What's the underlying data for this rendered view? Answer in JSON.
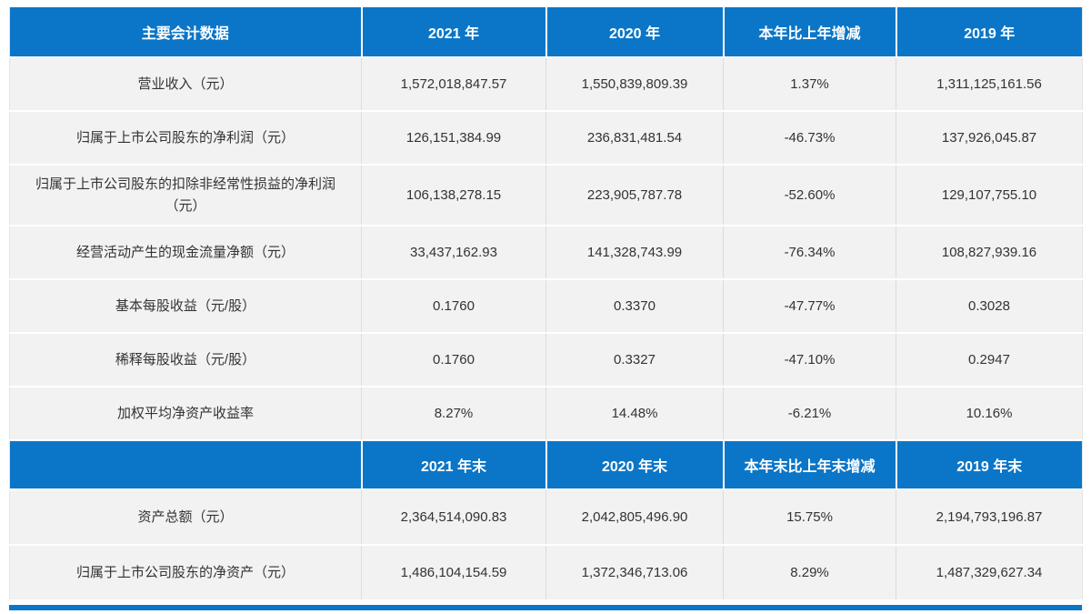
{
  "colors": {
    "accent": "#0b76c8",
    "row_background": "#f2f2f2",
    "body_text": "#333333",
    "header_text": "#ffffff"
  },
  "table": {
    "annual": {
      "header": [
        "主要会计数据",
        "2021 年",
        "2020 年",
        "本年比上年增减",
        "2019 年"
      ],
      "rows": [
        [
          "营业收入（元）",
          "1,572,018,847.57",
          "1,550,839,809.39",
          "1.37%",
          "1,311,125,161.56"
        ],
        [
          "归属于上市公司股东的净利润（元）",
          "126,151,384.99",
          "236,831,481.54",
          "-46.73%",
          "137,926,045.87"
        ],
        [
          "归属于上市公司股东的扣除非经常性损益的净利润（元）",
          "106,138,278.15",
          "223,905,787.78",
          "-52.60%",
          "129,107,755.10"
        ],
        [
          "经营活动产生的现金流量净额（元）",
          "33,437,162.93",
          "141,328,743.99",
          "-76.34%",
          "108,827,939.16"
        ],
        [
          "基本每股收益（元/股）",
          "0.1760",
          "0.3370",
          "-47.77%",
          "0.3028"
        ],
        [
          "稀释每股收益（元/股）",
          "0.1760",
          "0.3327",
          "-47.10%",
          "0.2947"
        ],
        [
          "加权平均净资产收益率",
          "8.27%",
          "14.48%",
          "-6.21%",
          "10.16%"
        ]
      ]
    },
    "year_end": {
      "header": [
        "",
        "2021 年末",
        "2020 年末",
        "本年末比上年末增减",
        "2019 年末"
      ],
      "rows": [
        [
          "资产总额（元）",
          "2,364,514,090.83",
          "2,042,805,496.90",
          "15.75%",
          "2,194,793,196.87"
        ],
        [
          "归属于上市公司股东的净资产（元）",
          "1,486,104,154.59",
          "1,372,346,713.06",
          "8.29%",
          "1,487,329,627.34"
        ]
      ]
    }
  }
}
